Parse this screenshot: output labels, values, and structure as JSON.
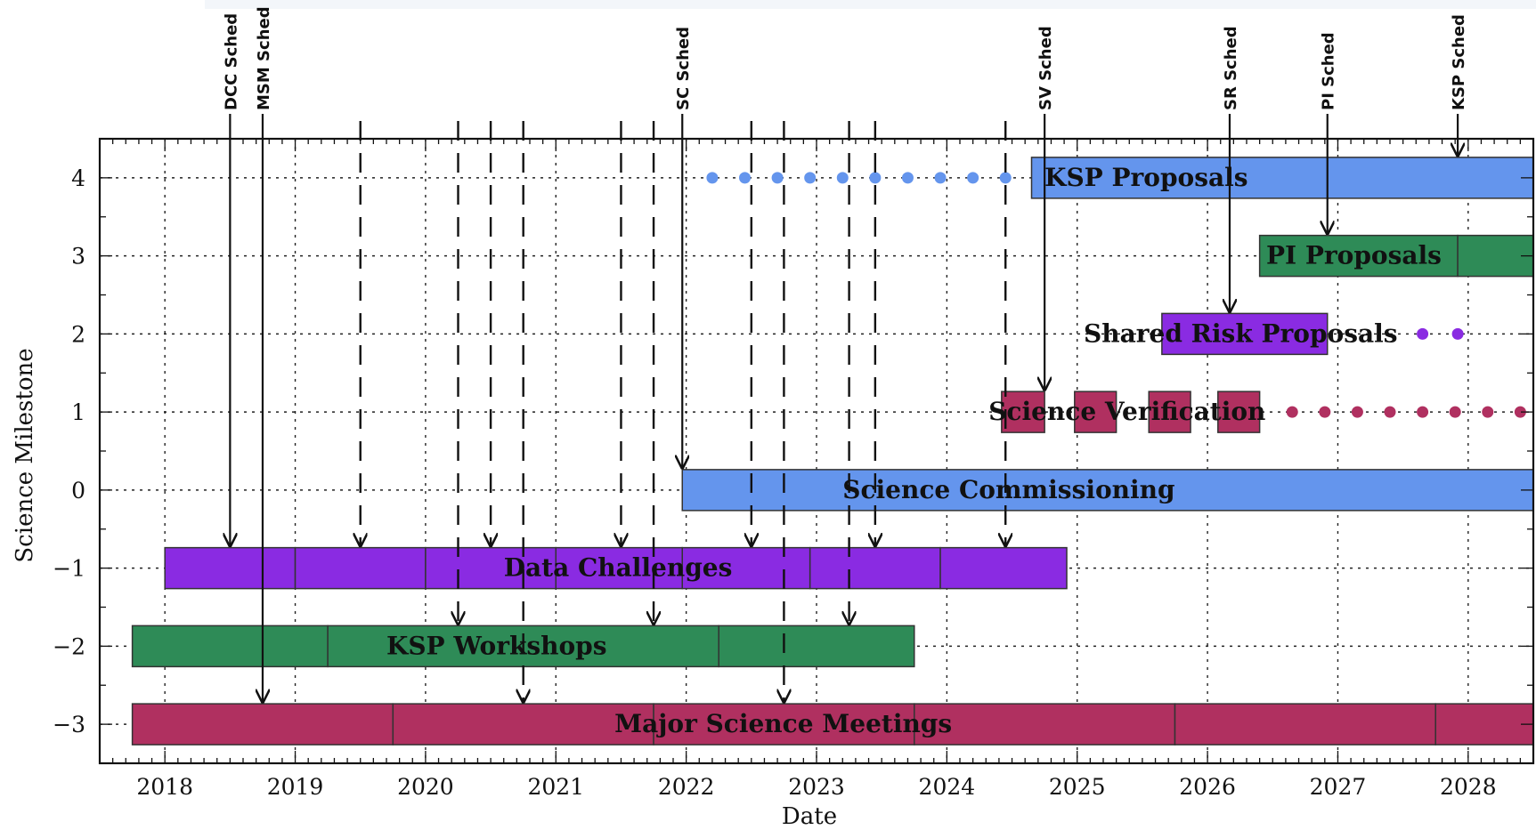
{
  "chart_data": {
    "type": "bar",
    "xlabel": "Date",
    "ylabel": "Science Milestone",
    "xlim": [
      2017.5,
      2028.5
    ],
    "ylim": [
      -3.5,
      4.5
    ],
    "x_ticks": [
      2018,
      2019,
      2020,
      2021,
      2022,
      2023,
      2024,
      2025,
      2026,
      2027,
      2028
    ],
    "y_ticks": [
      -3,
      -2,
      -1,
      0,
      1,
      2,
      3,
      4
    ],
    "x_tick_labels": [
      "2018",
      "2019",
      "2020",
      "2021",
      "2022",
      "2023",
      "2024",
      "2025",
      "2026",
      "2027",
      "2028"
    ],
    "y_tick_labels": [
      "−3",
      "−2",
      "−1",
      "0",
      "1",
      "2",
      "3",
      "4"
    ],
    "grid": true,
    "rows": [
      {
        "name": "KSP Proposals",
        "y": 4,
        "color": "#6495ED",
        "label_x": 2024.75,
        "segments": [
          [
            2024.65,
            2028.5
          ]
        ],
        "dots": [
          2022.2,
          2022.45,
          2022.7,
          2022.95,
          2023.2,
          2023.45,
          2023.7,
          2023.95,
          2024.2,
          2024.45
        ]
      },
      {
        "name": "PI Proposals",
        "y": 3,
        "color": "#2E8B57",
        "label_x": 2026.45,
        "segments": [
          [
            2026.4,
            2027.92
          ],
          [
            2027.92,
            2028.5
          ]
        ],
        "dots": []
      },
      {
        "name": "Shared Risk Proposals",
        "y": 2,
        "color": "#8A2BE2",
        "label_x": 2025.05,
        "segments": [
          [
            2025.65,
            2026.92
          ]
        ],
        "dots": [
          2027.65,
          2027.92
        ]
      },
      {
        "name": "Science Verification",
        "y": 1,
        "color": "#B03060",
        "label_x": 2024.32,
        "segments": [
          [
            2024.42,
            2024.75
          ],
          [
            2024.98,
            2025.3
          ],
          [
            2025.55,
            2025.87
          ],
          [
            2026.08,
            2026.4
          ]
        ],
        "dots": [
          2026.65,
          2026.9,
          2027.15,
          2027.4,
          2027.65,
          2027.9,
          2028.15,
          2028.4
        ]
      },
      {
        "name": "Science Commissioning",
        "y": 0,
        "color": "#6495ED",
        "label_x": 2023.2,
        "segments": [
          [
            2021.97,
            2028.5
          ]
        ],
        "dots": []
      },
      {
        "name": "Data Challenges",
        "y": -1,
        "color": "#8A2BE2",
        "label_x": 2020.6,
        "segments": [
          [
            2018.0,
            2019.0
          ],
          [
            2019.0,
            2020.0
          ],
          [
            2020.0,
            2021.0
          ],
          [
            2021.0,
            2021.97
          ],
          [
            2021.97,
            2022.95
          ],
          [
            2022.95,
            2023.95
          ],
          [
            2023.95,
            2024.92
          ]
        ],
        "dots": []
      },
      {
        "name": "KSP Workshops",
        "y": -2,
        "color": "#2E8B57",
        "label_x": 2019.7,
        "segments": [
          [
            2017.75,
            2019.25
          ],
          [
            2019.25,
            2022.25
          ],
          [
            2022.25,
            2023.75
          ]
        ],
        "dots": []
      },
      {
        "name": "Major Science Meetings",
        "y": -3,
        "color": "#B03060",
        "label_x": 2021.45,
        "segments": [
          [
            2017.75,
            2019.75
          ],
          [
            2019.75,
            2021.75
          ],
          [
            2021.75,
            2023.75
          ],
          [
            2023.75,
            2025.75
          ],
          [
            2025.75,
            2027.75
          ],
          [
            2027.75,
            2028.5
          ]
        ],
        "dots": []
      }
    ],
    "schedules": [
      {
        "label": "DCC Sched",
        "x": 2018.5,
        "y_end": -1
      },
      {
        "label": "MSM Sched",
        "x": 2018.75,
        "y_end": -3
      },
      {
        "label": "SC Sched",
        "x": 2021.97,
        "y_end": 0
      },
      {
        "label": "SV Sched",
        "x": 2024.75,
        "y_end": 1
      },
      {
        "label": "SR Sched",
        "x": 2026.17,
        "y_end": 2
      },
      {
        "label": "PI Sched",
        "x": 2026.92,
        "y_end": 3
      },
      {
        "label": "KSP Sched",
        "x": 2027.92,
        "y_end": 4
      }
    ],
    "dashed_arrows": [
      {
        "x": 2019.5,
        "y_end": -1
      },
      {
        "x": 2020.25,
        "y_end": -2
      },
      {
        "x": 2020.5,
        "y_end": -1
      },
      {
        "x": 2020.75,
        "y_end": -3
      },
      {
        "x": 2021.5,
        "y_end": -1
      },
      {
        "x": 2021.75,
        "y_end": -2
      },
      {
        "x": 2022.5,
        "y_end": -1
      },
      {
        "x": 2022.75,
        "y_end": -3
      },
      {
        "x": 2023.25,
        "y_end": -2
      },
      {
        "x": 2023.45,
        "y_end": -1
      },
      {
        "x": 2024.45,
        "y_end": -1
      }
    ]
  }
}
